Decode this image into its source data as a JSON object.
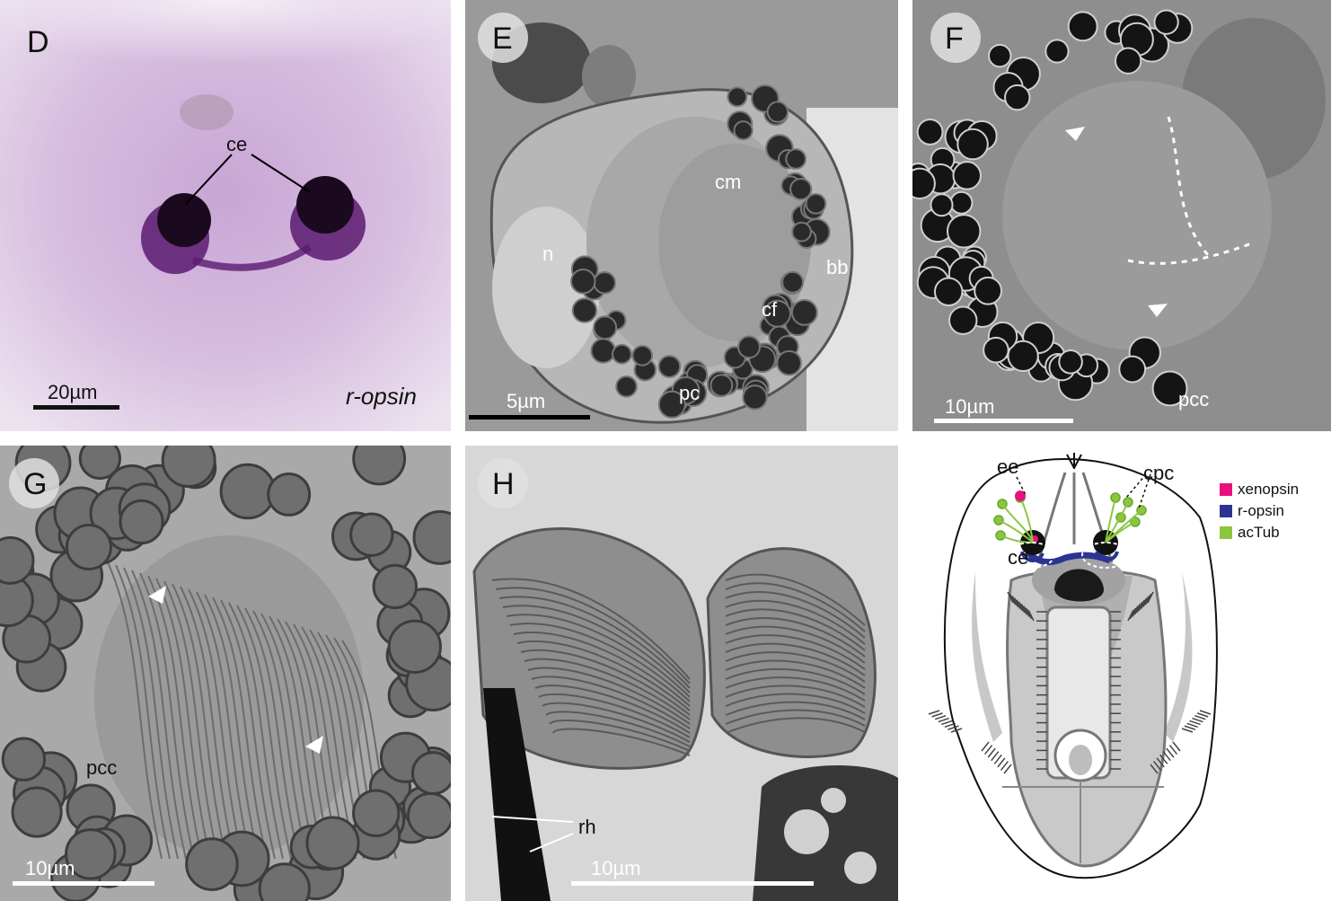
{
  "panels": {
    "D": {
      "letter": "D",
      "labels": {
        "ce": "ce"
      },
      "scale": "20µm",
      "gene": "r-opsin"
    },
    "E": {
      "letter": "E",
      "labels": {
        "cm": "cm",
        "n": "n",
        "bb": "bb",
        "cf": "cf",
        "pc": "pc"
      },
      "scale": "5µm"
    },
    "F": {
      "letter": "F",
      "labels": {
        "pcc": "pcc"
      },
      "scale": "10µm"
    },
    "G": {
      "letter": "G",
      "labels": {
        "pcc": "pcc"
      },
      "scale": "10µm"
    },
    "H": {
      "letter": "H",
      "labels": {
        "rh": "rh"
      },
      "scale": "10µm"
    },
    "diagram": {
      "labels": {
        "ee": "ee",
        "cpc": "cpc",
        "ce": "ce"
      },
      "legend": [
        {
          "label": "xenopsin",
          "color": "#e8117f"
        },
        {
          "label": "r-opsin",
          "color": "#2b3491"
        },
        {
          "label": "acTub",
          "color": "#8cc63f"
        }
      ]
    }
  }
}
